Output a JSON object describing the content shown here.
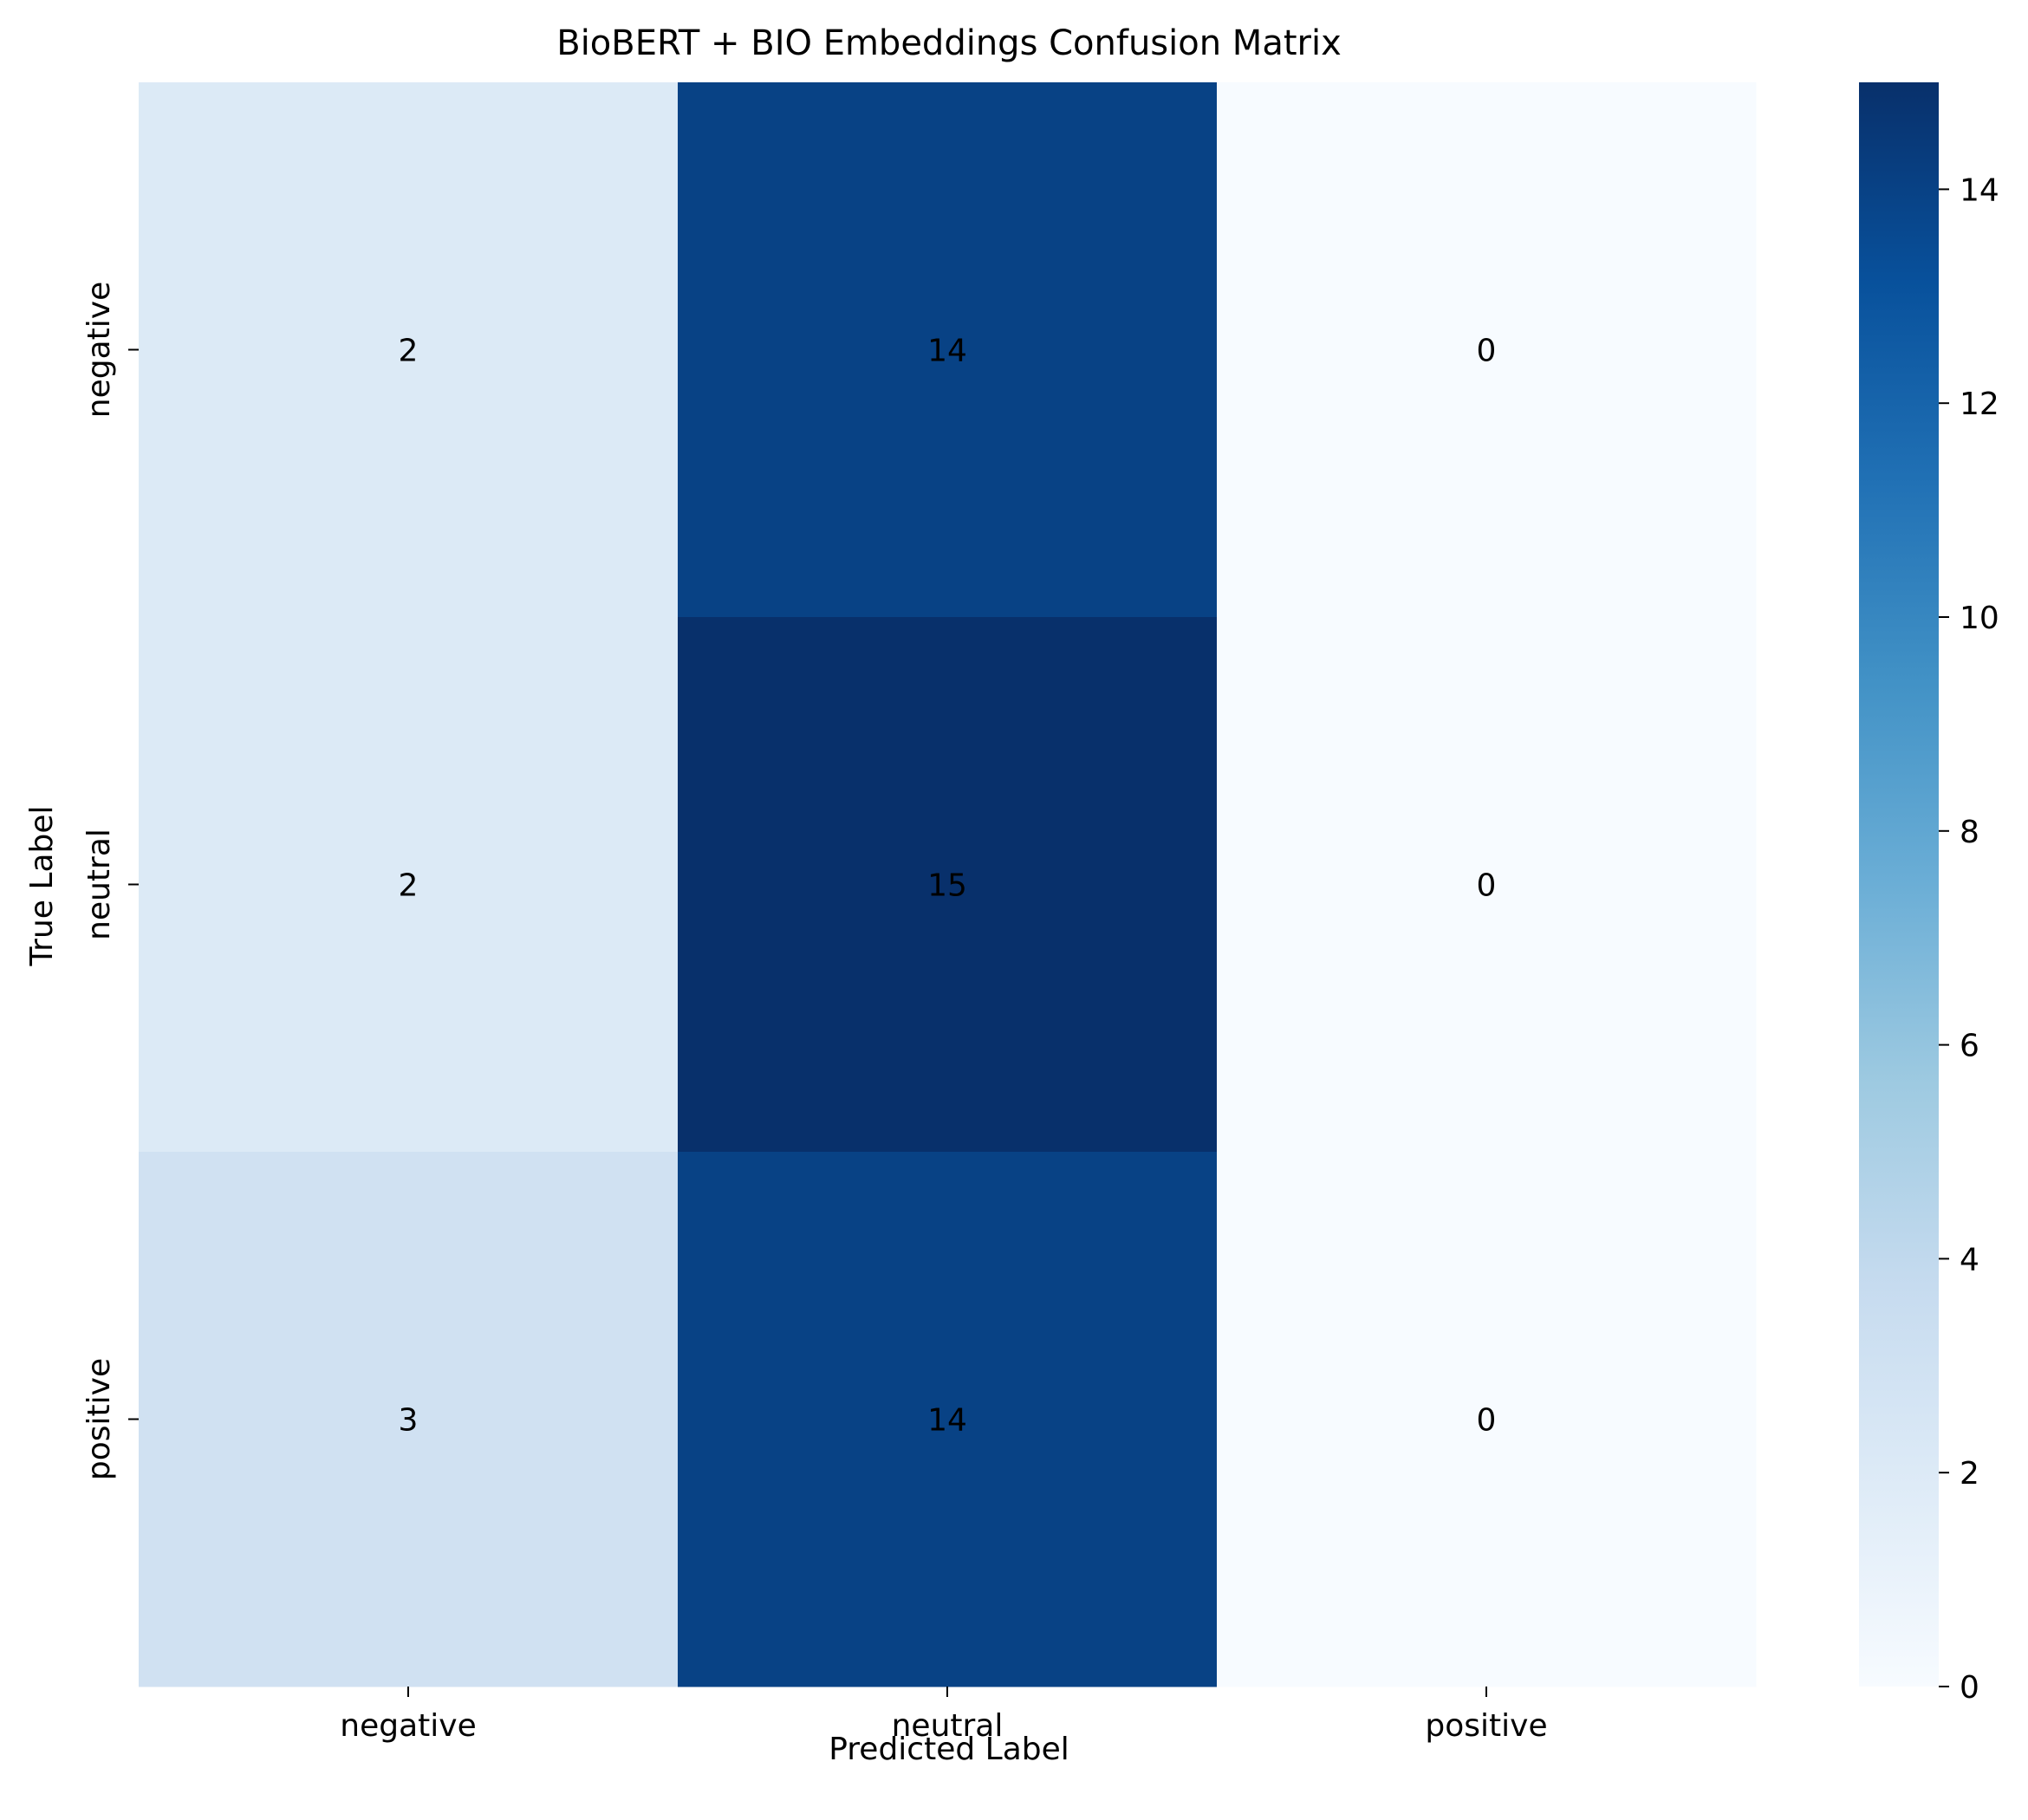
{
  "chart_data": {
    "type": "heatmap",
    "title": "BioBERT + BIO Embeddings Confusion Matrix",
    "xlabel": "Predicted Label",
    "ylabel": "True Label",
    "x_categories": [
      "negative",
      "neutral",
      "positive"
    ],
    "y_categories": [
      "negative",
      "neutral",
      "positive"
    ],
    "values": [
      [
        2,
        14,
        0
      ],
      [
        2,
        15,
        0
      ],
      [
        3,
        14,
        0
      ]
    ],
    "colormap": "Blues",
    "vmin": 0,
    "vmax": 15,
    "colorbar_ticks": [
      "0",
      "2",
      "4",
      "6",
      "8",
      "10",
      "12",
      "14"
    ],
    "annotation_colors": {
      "light_cell_text": "#262626",
      "dark_cell_text": "#ffffff"
    }
  }
}
